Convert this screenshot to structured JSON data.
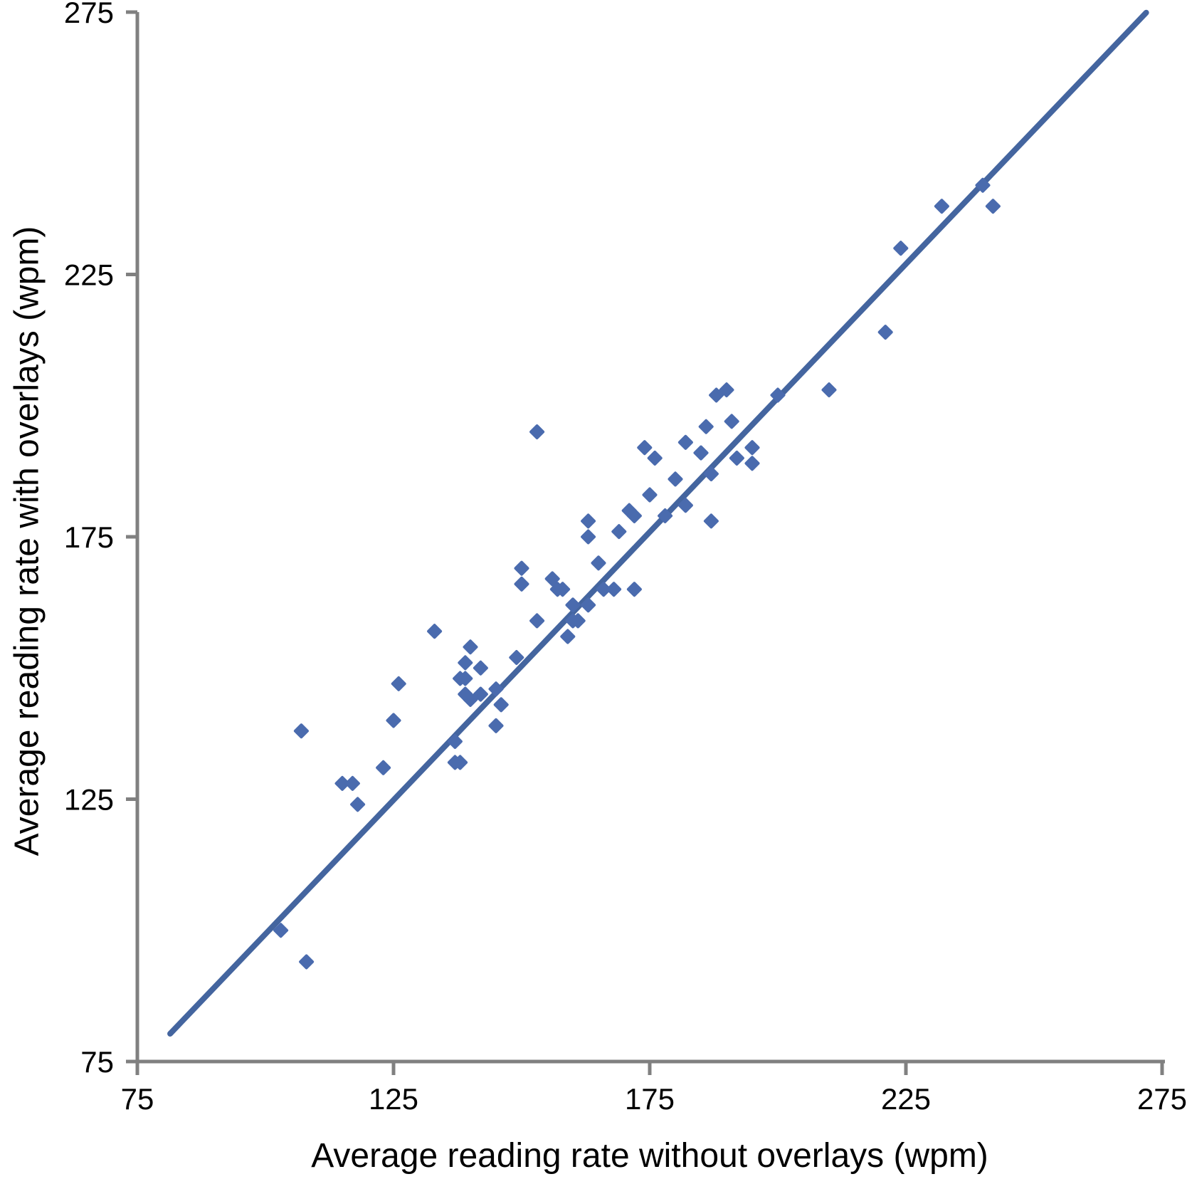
{
  "figure": {
    "background": "#ffffff"
  },
  "chart_data": {
    "type": "scatter",
    "title": "",
    "xlabel": "Average reading rate without overlays (wpm)",
    "ylabel": "Average reading rate with overlays (wpm)",
    "xlim": [
      75,
      275
    ],
    "ylim": [
      75,
      275
    ],
    "x_ticks": [
      "75",
      "125",
      "175",
      "225",
      "275"
    ],
    "y_ticks": [
      "75",
      "125",
      "175",
      "225",
      "275"
    ],
    "x_tick_values": [
      75,
      125,
      175,
      225,
      275
    ],
    "y_tick_values": [
      75,
      125,
      175,
      225,
      275
    ],
    "grid": false,
    "legend_position": "none",
    "marker": "diamond",
    "marker_color": "#4a6bae",
    "trendline_color": "#44659f",
    "axis_color": "#808080",
    "text_color": "#000000",
    "points": [
      [
        240,
        242
      ],
      [
        232,
        238
      ],
      [
        242,
        238
      ],
      [
        224,
        230
      ],
      [
        221,
        214
      ],
      [
        210,
        203
      ],
      [
        200,
        202
      ],
      [
        190,
        203
      ],
      [
        188,
        202
      ],
      [
        191,
        197
      ],
      [
        186,
        196
      ],
      [
        153,
        195
      ],
      [
        195,
        192
      ],
      [
        182,
        193
      ],
      [
        192,
        190
      ],
      [
        195,
        189
      ],
      [
        185,
        191
      ],
      [
        174,
        192
      ],
      [
        176,
        190
      ],
      [
        187,
        187
      ],
      [
        180,
        186
      ],
      [
        175,
        183
      ],
      [
        182,
        181
      ],
      [
        178,
        179
      ],
      [
        171,
        180
      ],
      [
        172,
        179
      ],
      [
        187,
        178
      ],
      [
        163,
        178
      ],
      [
        169,
        176
      ],
      [
        163,
        175
      ],
      [
        165,
        170
      ],
      [
        150,
        169
      ],
      [
        156,
        167
      ],
      [
        150,
        166
      ],
      [
        157,
        165
      ],
      [
        158,
        165
      ],
      [
        166,
        165
      ],
      [
        168,
        165
      ],
      [
        172,
        165
      ],
      [
        160,
        162
      ],
      [
        163,
        162
      ],
      [
        160,
        159
      ],
      [
        161,
        159
      ],
      [
        153,
        159
      ],
      [
        159,
        156
      ],
      [
        133,
        157
      ],
      [
        149,
        152
      ],
      [
        140,
        154
      ],
      [
        139,
        151
      ],
      [
        142,
        150
      ],
      [
        138,
        148
      ],
      [
        139,
        148
      ],
      [
        126,
        147
      ],
      [
        139,
        145
      ],
      [
        140,
        144
      ],
      [
        142,
        145
      ],
      [
        145,
        146
      ],
      [
        146,
        143
      ],
      [
        145,
        139
      ],
      [
        125,
        140
      ],
      [
        107,
        138
      ],
      [
        137,
        136
      ],
      [
        137,
        132
      ],
      [
        138,
        132
      ],
      [
        123,
        131
      ],
      [
        115,
        128
      ],
      [
        117,
        128
      ],
      [
        118,
        124
      ],
      [
        103,
        100
      ],
      [
        108,
        94
      ]
    ],
    "trendline": {
      "x1": 81.4,
      "y1": 80.3,
      "x2": 271.9,
      "y2": 274.9
    }
  }
}
